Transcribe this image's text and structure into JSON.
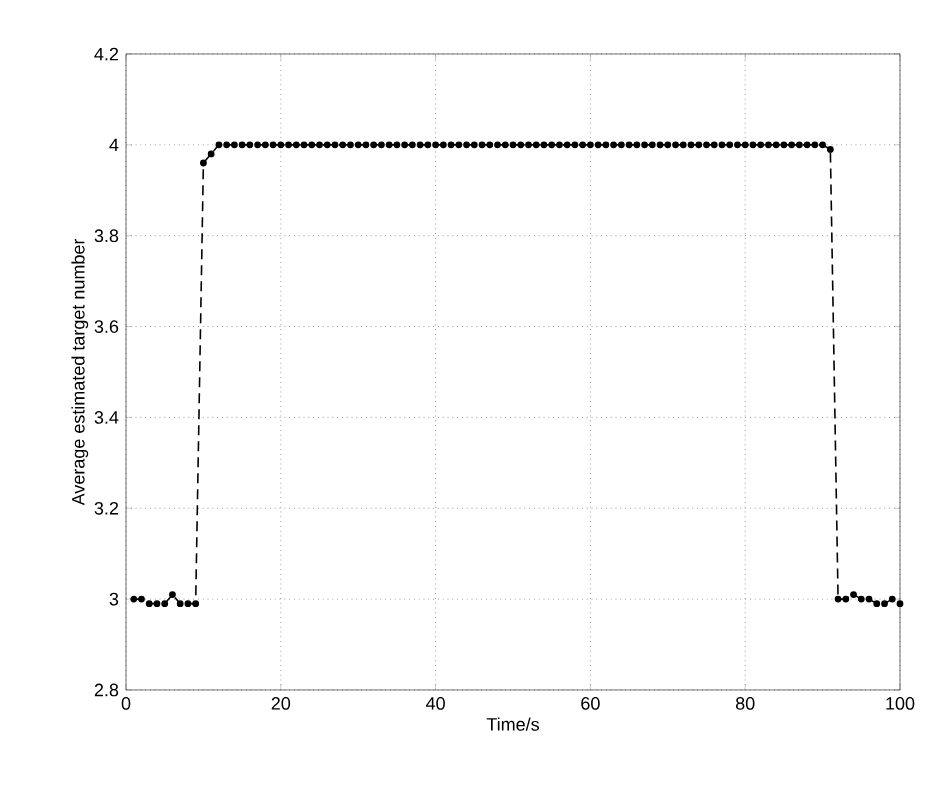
{
  "chart_data": {
    "type": "line",
    "xlabel": "Time/s",
    "ylabel": "Average estimated target number",
    "x": [
      1,
      2,
      3,
      4,
      5,
      6,
      7,
      8,
      9,
      10,
      11,
      12,
      13,
      14,
      15,
      16,
      17,
      18,
      19,
      20,
      21,
      22,
      23,
      24,
      25,
      26,
      27,
      28,
      29,
      30,
      31,
      32,
      33,
      34,
      35,
      36,
      37,
      38,
      39,
      40,
      41,
      42,
      43,
      44,
      45,
      46,
      47,
      48,
      49,
      50,
      51,
      52,
      53,
      54,
      55,
      56,
      57,
      58,
      59,
      60,
      61,
      62,
      63,
      64,
      65,
      66,
      67,
      68,
      69,
      70,
      71,
      72,
      73,
      74,
      75,
      76,
      77,
      78,
      79,
      80,
      81,
      82,
      83,
      84,
      85,
      86,
      87,
      88,
      89,
      90,
      91,
      92,
      93,
      94,
      95,
      96,
      97,
      98,
      99,
      100
    ],
    "series": [
      {
        "color": "#000000",
        "values": [
          3,
          3,
          2.99,
          2.99,
          2.99,
          3.01,
          2.99,
          2.99,
          2.99,
          3.96,
          3.98,
          4,
          4,
          4,
          4,
          4,
          4,
          4,
          4,
          4,
          4,
          4,
          4,
          4,
          4,
          4,
          4,
          4,
          4,
          4,
          4,
          4,
          4,
          4,
          4,
          4,
          4,
          4,
          4,
          4,
          4,
          4,
          4,
          4,
          4,
          4,
          4,
          4,
          4,
          4,
          4,
          4,
          4,
          4,
          4,
          4,
          4,
          4,
          4,
          4,
          4,
          4,
          4,
          4,
          4,
          4,
          4,
          4,
          4,
          4,
          4,
          4,
          4,
          4,
          4,
          4,
          4,
          4,
          4,
          4,
          4,
          4,
          4,
          4,
          4,
          4,
          4,
          4,
          4,
          4,
          3.99,
          3,
          3,
          3.01,
          3,
          3,
          2.99,
          2.99,
          3,
          2.99
        ]
      }
    ],
    "xlim": [
      0,
      100
    ],
    "xticks": [
      0,
      20,
      40,
      60,
      80,
      100
    ],
    "ylim": [
      2.8,
      4.2
    ],
    "yticks": [
      2.8,
      3,
      3.2,
      3.4,
      3.6,
      3.8,
      4,
      4.2
    ],
    "grid": true,
    "marker": "circle",
    "line_style": "dashed"
  }
}
